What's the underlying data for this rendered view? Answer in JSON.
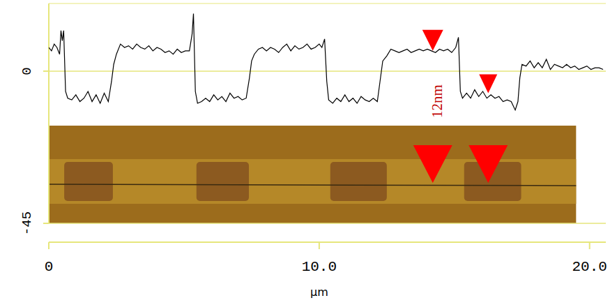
{
  "chart_data": {
    "type": "line",
    "x_label": "µm",
    "x": [
      0,
      0.1,
      0.2,
      0.3,
      0.4,
      0.45,
      0.5,
      0.55,
      0.62,
      0.7,
      0.85,
      1.0,
      1.15,
      1.3,
      1.45,
      1.6,
      1.75,
      1.9,
      2.05,
      2.2,
      2.32,
      2.4,
      2.5,
      2.65,
      2.8,
      2.95,
      3.1,
      3.25,
      3.4,
      3.55,
      3.7,
      3.85,
      4.0,
      4.15,
      4.3,
      4.45,
      4.6,
      4.75,
      4.9,
      5.05,
      5.2,
      5.3,
      5.35,
      5.42,
      5.5,
      5.65,
      5.8,
      5.95,
      6.1,
      6.25,
      6.4,
      6.55,
      6.7,
      6.85,
      7.0,
      7.15,
      7.3,
      7.42,
      7.5,
      7.6,
      7.75,
      7.9,
      8.05,
      8.2,
      8.35,
      8.5,
      8.65,
      8.8,
      8.95,
      9.1,
      9.25,
      9.4,
      9.55,
      9.7,
      9.85,
      10.0,
      10.1,
      10.2,
      10.28,
      10.35,
      10.5,
      10.65,
      10.8,
      10.95,
      11.1,
      11.25,
      11.4,
      11.55,
      11.7,
      11.85,
      12.0,
      12.15,
      12.25,
      12.35,
      12.5,
      12.65,
      12.8,
      12.95,
      13.1,
      13.25,
      13.4,
      13.55,
      13.7,
      13.85,
      14.0,
      14.15,
      14.3,
      14.45,
      14.6,
      14.75,
      14.9,
      15.05,
      15.15,
      15.22,
      15.3,
      15.45,
      15.6,
      15.75,
      15.9,
      16.05,
      16.2,
      16.35,
      16.5,
      16.65,
      16.8,
      16.95,
      17.1,
      17.25,
      17.35,
      17.42,
      17.5,
      17.65,
      17.8,
      17.95,
      18.1,
      18.25,
      18.4,
      18.55,
      18.7,
      18.85,
      19.0,
      19.15,
      19.3,
      19.45,
      19.6,
      19.75,
      19.9,
      20.05,
      20.2,
      20.35,
      20.5
    ],
    "series": [
      {
        "color": "#000000",
        "values": [
          7,
          6,
          8,
          7,
          5,
          12,
          9,
          12,
          -6,
          -8,
          -8.5,
          -7,
          -9,
          -8,
          -6,
          -9,
          -7,
          -9.5,
          -6.5,
          -9,
          -3,
          2,
          5,
          8,
          7,
          7.5,
          6.5,
          8,
          7,
          6.5,
          7.5,
          6,
          7,
          6.5,
          5.5,
          6,
          5,
          6.5,
          5.5,
          6,
          6,
          11,
          17,
          -6,
          -9.5,
          -9,
          -8,
          -9,
          -7,
          -8.5,
          -7.5,
          -9,
          -6.5,
          -8,
          -7.5,
          -8.5,
          -8,
          -2,
          3,
          5,
          6.5,
          7,
          6,
          7,
          6.5,
          5.5,
          7,
          8,
          6,
          7.5,
          6.5,
          7,
          8,
          6.5,
          7,
          8,
          7,
          9.5,
          -3,
          -8.5,
          -9.5,
          -8,
          -9,
          -7,
          -9,
          -8,
          -9.5,
          -7.5,
          -8.5,
          -9,
          -8,
          -9,
          -3,
          3,
          4.5,
          6.5,
          6,
          5.5,
          6,
          6.5,
          5.5,
          6,
          6.5,
          6,
          6.5,
          6,
          5.5,
          6.5,
          6,
          6.5,
          5.5,
          7,
          10,
          -6,
          -8,
          -6.5,
          -8,
          -5.5,
          -7.5,
          -6,
          -8,
          -7,
          -8,
          -7.5,
          -9,
          -8.5,
          -9,
          -11.5,
          -9,
          -2,
          2,
          1.5,
          3,
          1,
          2.5,
          1,
          3.5,
          0.5,
          2,
          1.5,
          1,
          2,
          1,
          1.5,
          0.5,
          1,
          1.5,
          0.5,
          1,
          1,
          0.5
        ]
      }
    ],
    "xlim": [
      0,
      20.6
    ],
    "ylim": [
      -45,
      20
    ],
    "xticks": [
      0,
      {
        "value": 10,
        "label": "10.0"
      },
      {
        "value": 20,
        "label": "20.0"
      }
    ],
    "yticks": [
      0,
      -45
    ],
    "grid": true,
    "annotation": {
      "text": "12nm",
      "cursors": [
        {
          "x": 14.2,
          "y": 6
        },
        {
          "x": 16.25,
          "y": -6.5
        }
      ]
    },
    "image": {
      "extent": 19.5,
      "pads": [
        [
          0.57,
          2.37
        ],
        [
          5.46,
          7.4
        ],
        [
          10.41,
          12.5
        ],
        [
          15.36,
          17.47
        ]
      ]
    }
  }
}
